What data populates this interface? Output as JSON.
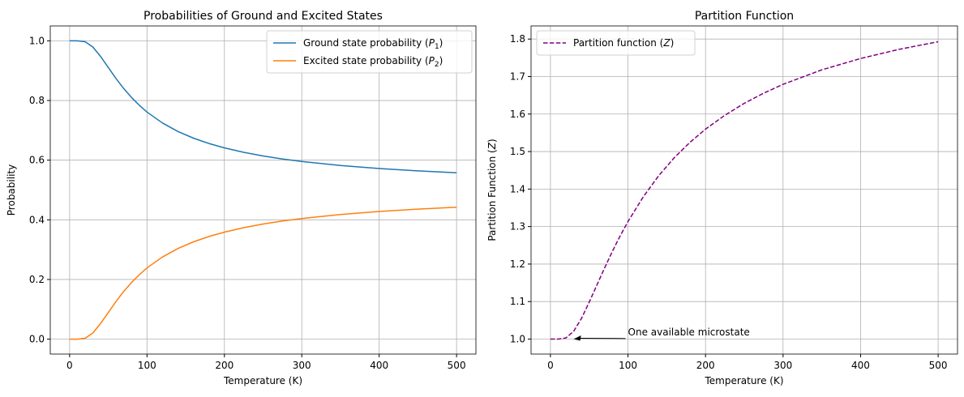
{
  "chart_data": [
    {
      "type": "line",
      "title": "Probabilities of Ground and Excited States",
      "xlabel": "Temperature (K)",
      "ylabel": "Probability",
      "xlim": [
        -25,
        525
      ],
      "ylim": [
        -0.05,
        1.05
      ],
      "xticks": [
        0,
        100,
        200,
        300,
        400,
        500
      ],
      "xtick_labels": [
        "0",
        "100",
        "200",
        "300",
        "400",
        "500"
      ],
      "yticks": [
        0.0,
        0.2,
        0.4,
        0.6,
        0.8,
        1.0
      ],
      "ytick_labels": [
        "0.0",
        "0.2",
        "0.4",
        "0.6",
        "0.8",
        "1.0"
      ],
      "grid": true,
      "legend_position": "top-right",
      "x": [
        0,
        10,
        20,
        30,
        40,
        50,
        60,
        70,
        80,
        90,
        100,
        120,
        140,
        160,
        180,
        200,
        225,
        250,
        275,
        300,
        350,
        400,
        450,
        500
      ],
      "series": [
        {
          "name": "Ground state probability (P₁)",
          "color": "#1f77b4",
          "style": "solid",
          "values": [
            1.0,
            1.0,
            0.997,
            0.9795,
            0.9479,
            0.9106,
            0.8737,
            0.8399,
            0.8101,
            0.7841,
            0.7614,
            0.7245,
            0.6961,
            0.6738,
            0.6558,
            0.6411,
            0.6262,
            0.614,
            0.604,
            0.5955,
            0.5821,
            0.572,
            0.5641,
            0.5578
          ]
        },
        {
          "name": "Excited state probability (P₂)",
          "color": "#ff7f0e",
          "style": "solid",
          "values": [
            0.0,
            0.0,
            0.003,
            0.0205,
            0.0521,
            0.0894,
            0.1263,
            0.1601,
            0.1899,
            0.2159,
            0.2386,
            0.2755,
            0.3039,
            0.3262,
            0.3442,
            0.3589,
            0.3738,
            0.386,
            0.396,
            0.4045,
            0.4179,
            0.428,
            0.4359,
            0.4422
          ]
        }
      ]
    },
    {
      "type": "line",
      "title": "Partition Function",
      "xlabel": "Temperature (K)",
      "ylabel": "Partition Function (Z)",
      "xlim": [
        -25,
        525
      ],
      "ylim": [
        0.96,
        1.835
      ],
      "xticks": [
        0,
        100,
        200,
        300,
        400,
        500
      ],
      "xtick_labels": [
        "0",
        "100",
        "200",
        "300",
        "400",
        "500"
      ],
      "yticks": [
        1.0,
        1.1,
        1.2,
        1.3,
        1.4,
        1.5,
        1.6,
        1.7,
        1.8
      ],
      "ytick_labels": [
        "1.0",
        "1.1",
        "1.2",
        "1.3",
        "1.4",
        "1.5",
        "1.6",
        "1.7",
        "1.8"
      ],
      "grid": true,
      "legend_position": "top-left",
      "x": [
        0,
        10,
        20,
        30,
        40,
        50,
        60,
        70,
        80,
        90,
        100,
        120,
        140,
        160,
        180,
        200,
        225,
        250,
        275,
        300,
        350,
        400,
        450,
        500
      ],
      "series": [
        {
          "name": "Partition function (Z)",
          "color": "#800080",
          "style": "dashed",
          "values": [
            1.0,
            1.0,
            1.003,
            1.0209,
            1.055,
            1.0982,
            1.1446,
            1.1906,
            1.2344,
            1.2754,
            1.3133,
            1.3802,
            1.4365,
            1.4842,
            1.5248,
            1.5598,
            1.597,
            1.6287,
            1.6557,
            1.6792,
            1.7178,
            1.7482,
            1.7727,
            1.7929
          ]
        }
      ],
      "annotation": {
        "text": "One available microstate",
        "xy": [
          30,
          1.0
        ],
        "xytext": [
          100,
          1.01
        ]
      }
    }
  ]
}
